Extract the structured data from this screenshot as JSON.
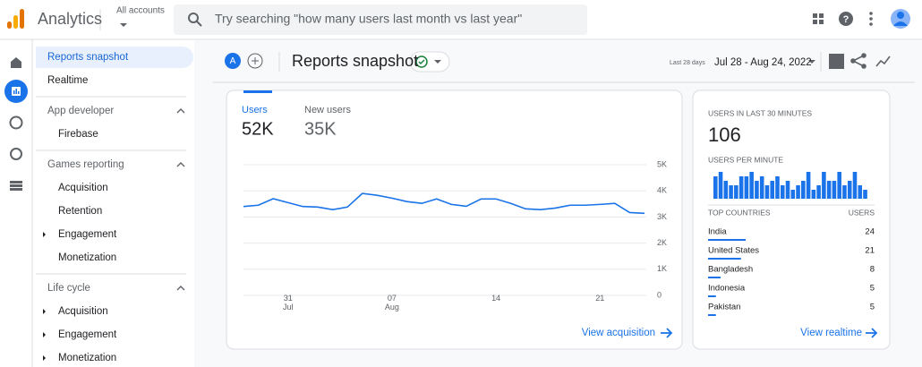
{
  "header": {
    "app_name": "Analytics",
    "account_label": "All accounts",
    "search_placeholder": "Try searching \"how many users last month vs last year\""
  },
  "sidebar": {
    "items": [
      "Reports snapshot",
      "Realtime"
    ],
    "sections": [
      {
        "title": "App developer",
        "items": [
          "Firebase"
        ]
      },
      {
        "title": "Games reporting",
        "items": [
          "Acquisition",
          "Retention",
          "Engagement",
          "Monetization"
        ]
      },
      {
        "title": "Life cycle",
        "items": [
          "Acquisition",
          "Engagement",
          "Monetization"
        ]
      }
    ]
  },
  "toolbar": {
    "avatar": "A",
    "title": "Reports snapshot",
    "date_label": "Last 28 days",
    "date_range": "Jul 28 - Aug 24, 2022"
  },
  "users_card": {
    "tabs": [
      {
        "label": "Users",
        "value": "52K"
      },
      {
        "label": "New users",
        "value": "35K"
      }
    ],
    "chart": {
      "type": "line",
      "color": "#1a73e8",
      "categories": [
        null,
        null,
        null,
        "31 Jul",
        null,
        null,
        null,
        null,
        null,
        null,
        "07 Aug",
        null,
        null,
        null,
        null,
        null,
        null,
        "14",
        null,
        null,
        null,
        null,
        null,
        null,
        "21",
        null,
        null,
        null
      ],
      "values": [
        3400,
        3450,
        3700,
        3550,
        3400,
        3380,
        3280,
        3380,
        3900,
        3830,
        3720,
        3590,
        3520,
        3690,
        3480,
        3410,
        3690,
        3690,
        3520,
        3310,
        3280,
        3340,
        3450,
        3450,
        3480,
        3520,
        3170,
        3140
      ],
      "ylim": [
        0,
        5000
      ],
      "yticks": [
        0,
        {
          "value": 1000,
          "label": "1K"
        },
        {
          "value": 2000,
          "label": "2K"
        },
        {
          "value": 3000,
          "label": "3K"
        },
        {
          "value": 4000,
          "label": "4K"
        },
        {
          "value": 5000,
          "label": "5K"
        }
      ],
      "grid": true
    },
    "link": "View acquisition"
  },
  "realtime_card": {
    "title": "USERS IN LAST 30 MINUTES",
    "value": "106",
    "per_minute_label": "USERS PER MINUTE",
    "per_minute": {
      "type": "bar",
      "color": "#1a73e8",
      "ylim": [
        0,
        6
      ],
      "values": [
        5,
        6,
        4,
        3,
        3,
        5,
        5,
        6,
        4,
        5,
        3,
        4,
        5,
        3,
        4,
        2,
        3,
        4,
        6,
        2,
        3,
        6,
        4,
        4,
        6,
        3,
        4,
        6,
        3,
        2
      ]
    },
    "countries_header": "TOP COUNTRIES",
    "users_header": "USERS",
    "countries": [
      {
        "name": "India",
        "users": 24
      },
      {
        "name": "United States",
        "users": 21
      },
      {
        "name": "Bangladesh",
        "users": 8
      },
      {
        "name": "Indonesia",
        "users": 5
      },
      {
        "name": "Pakistan",
        "users": 5
      }
    ],
    "link": "View realtime"
  }
}
